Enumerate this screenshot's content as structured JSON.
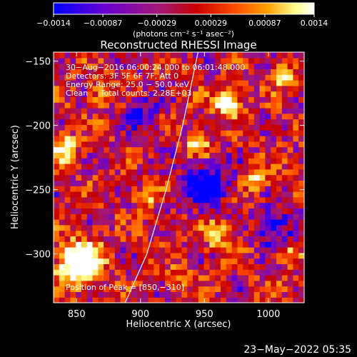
{
  "chart_data": {
    "type": "heatmap",
    "title": "Reconstructed RHESSI Image",
    "xlabel": "Heliocentric X (arcsec)",
    "ylabel": "Heliocentric Y (arcsec)",
    "xlim": [
      832,
      1028
    ],
    "ylim": [
      -338,
      -143
    ],
    "x_ticks": [
      850,
      900,
      950,
      1000
    ],
    "y_ticks": [
      -300,
      -250,
      -200,
      -150
    ],
    "x_tick_labels": [
      "850",
      "900",
      "950",
      "1000"
    ],
    "y_tick_labels": [
      "−300",
      "−250",
      "−200",
      "−150"
    ],
    "colorbar": {
      "ticks": [
        -0.0014,
        -0.00087,
        -0.00029,
        0.00029,
        0.00087,
        0.0014
      ],
      "tick_labels": [
        "−0.0014",
        "−0.00087",
        "−0.00029",
        "0.00029",
        "0.00087",
        "0.0014"
      ],
      "range": [
        -0.0014,
        0.0014
      ],
      "unit_label": "(photons cm⁻² s⁻¹ asec⁻²)",
      "colors": [
        "#0000ff",
        "#6a00d0",
        "#a01878",
        "#c80000",
        "#ff5000",
        "#ffa000",
        "#ffff90",
        "#ffffff"
      ]
    },
    "annotations": [
      "30−Aug−2016 06:00:24.000 to 06:01:48.000",
      "Detectors: 3F 5F 6F 7F, Att 0",
      "Energy Range: 25.0 − 50.0 keV",
      "Clean     Total counts: 2.28E+03"
    ],
    "peak_label": "Position of Peak = [850,−310]",
    "peak": [
      850,
      -310
    ],
    "limb_curve": [
      [
        888,
        -338
      ],
      [
        905,
        -300
      ],
      [
        920,
        -250
      ],
      [
        933,
        -200
      ],
      [
        945,
        -143
      ]
    ],
    "hotspots": [
      {
        "x": 852,
        "y": -306,
        "amp": 1.0,
        "r": 11
      },
      {
        "x": 968,
        "y": -182,
        "amp": 0.8,
        "r": 7
      },
      {
        "x": 945,
        "y": -215,
        "amp": 0.55,
        "r": 6
      },
      {
        "x": 840,
        "y": -218,
        "amp": 0.6,
        "r": 7
      },
      {
        "x": 1012,
        "y": -160,
        "amp": 0.5,
        "r": 6
      },
      {
        "x": 992,
        "y": -240,
        "amp": 0.5,
        "r": 6
      },
      {
        "x": 960,
        "y": -285,
        "amp": 0.45,
        "r": 7
      },
      {
        "x": 905,
        "y": -255,
        "amp": 0.4,
        "r": 6
      },
      {
        "x": 870,
        "y": -175,
        "amp": 0.45,
        "r": 6
      },
      {
        "x": 1015,
        "y": -300,
        "amp": 0.4,
        "r": 6
      },
      {
        "x": 930,
        "y": -320,
        "amp": 0.35,
        "r": 6
      }
    ],
    "coldspots": [
      {
        "x": 950,
        "y": -245,
        "amp": 0.55,
        "r": 12
      },
      {
        "x": 900,
        "y": -190,
        "amp": 0.35,
        "r": 10
      },
      {
        "x": 1005,
        "y": -280,
        "amp": 0.4,
        "r": 10
      }
    ]
  },
  "footer_timestamp": "23−May−2022 05:35"
}
